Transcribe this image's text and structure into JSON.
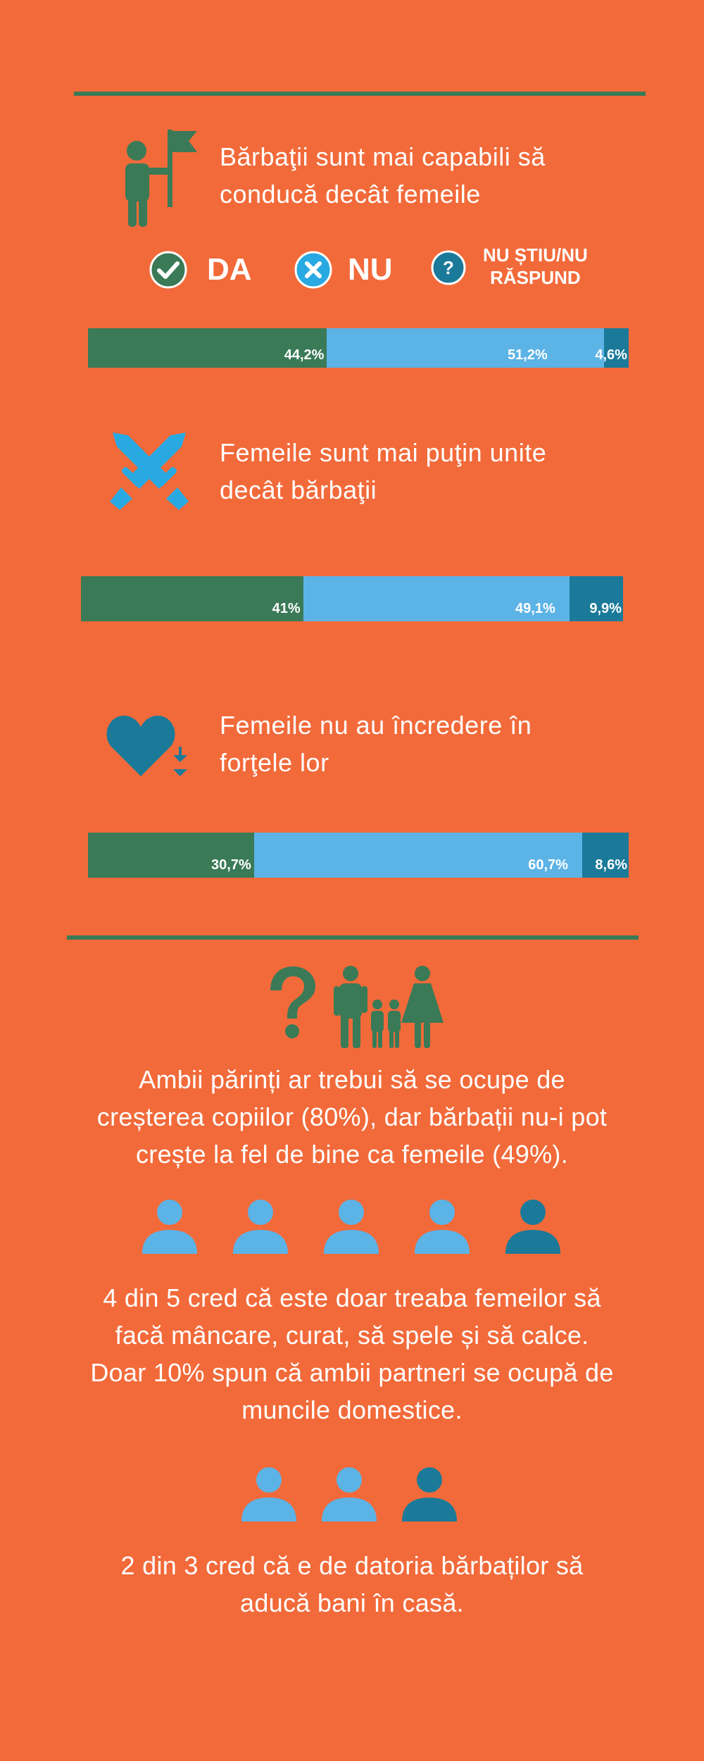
{
  "colors": {
    "background": "#F26A3A",
    "da": "#3A7A57",
    "nu": "#5CB3E6",
    "nu_stiu": "#1B7A99",
    "divider": "#3A7A57"
  },
  "legend": {
    "da": {
      "label": "DA",
      "icon": "check-circle-icon"
    },
    "nu": {
      "label": "NU",
      "icon": "x-circle-icon"
    },
    "nu_stiu": {
      "label_line1": "NU ȘTIU/NU",
      "label_line2": "RĂSPUND",
      "icon": "question-circle-icon"
    }
  },
  "questions": [
    {
      "line1": "Bărbaţii sunt mai capabili să",
      "line2": "conducă decât femeile",
      "icon": "person-with-flag-icon"
    },
    {
      "line1": "Femeile sunt mai puţin unite",
      "line2": "decât bărbaţii",
      "icon": "crossed-swords-icon"
    },
    {
      "line1": "Femeile nu au încredere în",
      "line2": "forţele lor",
      "icon": "heart-down-arrows-icon"
    }
  ],
  "chart_data": {
    "type": "bar",
    "stacked": true,
    "orientation": "horizontal",
    "series": [
      {
        "name": "DA",
        "values": [
          44.2,
          41,
          30.7
        ],
        "labels": [
          "44,2%",
          "41%",
          "30,7%"
        ]
      },
      {
        "name": "NU",
        "values": [
          51.2,
          49.1,
          60.7
        ],
        "labels": [
          "51,2%",
          "49,1%",
          "60,7%"
        ]
      },
      {
        "name": "NU ȘTIU/NU RĂSPUND",
        "values": [
          4.6,
          9.9,
          8.6
        ],
        "labels": [
          "4,6%",
          "9,9%",
          "8,6%"
        ]
      }
    ]
  },
  "family_icon": "family-question-icon",
  "paragraphs": {
    "p1": {
      "line1": "Ambii părinți ar trebui să se ocupe de",
      "line2": "creșterea copiilor (80%), dar bărbații nu-i pot",
      "line3": "crește la fel de bine ca femeile (49%)."
    },
    "p2": {
      "line1": "4 din 5 cred că este doar treaba femeilor să",
      "line2": "facă mâncare, curat, să spele și să calce.",
      "line3": "Doar 10% spun că ambii partneri se ocupă de",
      "line4": "muncile domestice."
    },
    "p3": {
      "line1": "2 din 3 cred că e de datoria bărbaților să",
      "line2": "aducă bani în casă."
    }
  },
  "people_rows": {
    "row1": {
      "highlighted": 4,
      "total": 5,
      "icon": "person-icon"
    },
    "row2": {
      "highlighted": 2,
      "total": 3,
      "icon": "person-icon"
    }
  }
}
